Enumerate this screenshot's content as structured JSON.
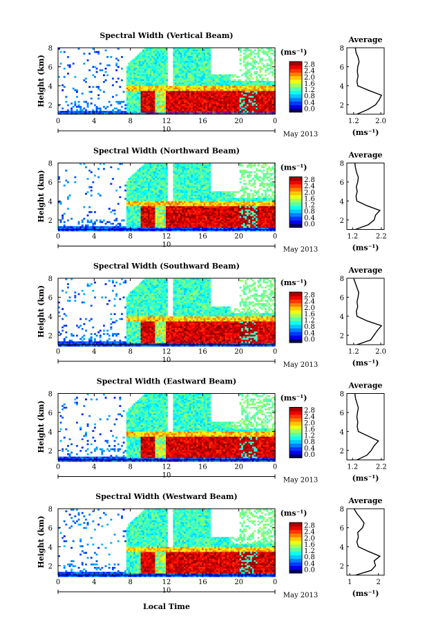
{
  "figure": {
    "xlabel": "Local Time",
    "date_label": "May 2013",
    "colorbar_unit": "(ms⁻¹)",
    "profile_title": "Average",
    "profile_unit": "(ms⁻¹)"
  },
  "chart_data": [
    {
      "type": "heatmap",
      "title": "Spectral Width (Vertical Beam)",
      "ylabel": "Height (km)",
      "xlabel": "Local Time",
      "x_ticks": [
        "0",
        "4",
        "8",
        "12",
        "16",
        "20",
        "0"
      ],
      "day_label": "10",
      "y_ticks": [
        "2",
        "4",
        "6",
        "8"
      ],
      "xlim": [
        0,
        24
      ],
      "ylim": [
        1,
        8
      ],
      "colorbar": {
        "ticks": [
          "0.0",
          "0.4",
          "0.8",
          "1.2",
          "1.6",
          "2.0",
          "2.4",
          "2.8"
        ],
        "range": [
          0,
          2.8
        ]
      },
      "profile": {
        "title": "Average",
        "xlabel": "(ms⁻¹)",
        "x_ticks": [
          "1.2",
          "2.0"
        ],
        "xlim": [
          1.0,
          2.1
        ],
        "y_ticks": [
          "2",
          "4",
          "6",
          "8"
        ],
        "ylim": [
          1,
          8
        ],
        "heights": [
          1.0,
          1.5,
          2.0,
          2.5,
          3.0,
          3.5,
          4.0,
          4.5,
          5.0,
          5.5,
          6.0,
          6.5,
          7.0,
          7.5,
          8.0
        ],
        "values": [
          1.3,
          1.62,
          1.85,
          1.95,
          2.02,
          1.65,
          1.32,
          1.3,
          1.33,
          1.31,
          1.32,
          1.36,
          1.33,
          1.27,
          1.25
        ]
      }
    },
    {
      "type": "heatmap",
      "title": "Spectral Width (Northward Beam)",
      "ylabel": "Height (km)",
      "xlabel": "Local Time",
      "x_ticks": [
        "0",
        "4",
        "8",
        "12",
        "16",
        "20",
        "0"
      ],
      "day_label": "10",
      "y_ticks": [
        "2",
        "4",
        "6",
        "8"
      ],
      "xlim": [
        0,
        24
      ],
      "ylim": [
        1,
        8
      ],
      "colorbar": {
        "ticks": [
          "0.0",
          "0.4",
          "0.8",
          "1.2",
          "1.6",
          "2.0",
          "2.4",
          "2.8"
        ],
        "range": [
          0,
          2.8
        ]
      },
      "profile": {
        "title": "Average",
        "xlabel": "(ms⁻¹)",
        "x_ticks": [
          "1.2",
          "2.2"
        ],
        "xlim": [
          1.0,
          2.3
        ],
        "y_ticks": [
          "2",
          "4",
          "6",
          "8"
        ],
        "ylim": [
          1,
          8
        ],
        "heights": [
          1.0,
          1.5,
          2.0,
          2.5,
          3.0,
          3.5,
          4.0,
          4.5,
          5.0,
          5.5,
          6.0,
          6.5,
          7.0,
          7.5,
          8.0
        ],
        "values": [
          1.3,
          1.75,
          1.95,
          2.0,
          2.15,
          1.7,
          1.35,
          1.32,
          1.36,
          1.33,
          1.38,
          1.4,
          1.34,
          1.3,
          1.28
        ]
      }
    },
    {
      "type": "heatmap",
      "title": "Spectral Width (Southward Beam)",
      "ylabel": "Height (km)",
      "xlabel": "Local Time",
      "x_ticks": [
        "0",
        "4",
        "8",
        "12",
        "16",
        "20",
        "0"
      ],
      "day_label": "10",
      "y_ticks": [
        "2",
        "4",
        "6",
        "8"
      ],
      "xlim": [
        0,
        24
      ],
      "ylim": [
        1,
        8
      ],
      "colorbar": {
        "ticks": [
          "0.0",
          "0.4",
          "0.8",
          "1.2",
          "1.6",
          "2.0",
          "2.4",
          "2.8"
        ],
        "range": [
          0,
          2.8
        ]
      },
      "profile": {
        "title": "Average",
        "xlabel": "(ms⁻¹)",
        "x_ticks": [
          "1.2",
          "2.0"
        ],
        "xlim": [
          1.0,
          2.1
        ],
        "y_ticks": [
          "2",
          "4",
          "6",
          "8"
        ],
        "ylim": [
          1,
          8
        ],
        "heights": [
          1.0,
          1.5,
          2.0,
          2.5,
          3.0,
          3.5,
          4.0,
          4.5,
          5.0,
          5.5,
          6.0,
          6.5,
          7.0,
          7.5,
          8.0
        ],
        "values": [
          1.3,
          1.7,
          1.8,
          1.9,
          2.02,
          1.6,
          1.3,
          1.28,
          1.32,
          1.3,
          1.33,
          1.35,
          1.3,
          1.25,
          1.2
        ]
      }
    },
    {
      "type": "heatmap",
      "title": "Spectral Width (Eastward Beam)",
      "ylabel": "Height (km)",
      "xlabel": "Local Time",
      "x_ticks": [
        "0",
        "4",
        "8",
        "12",
        "16",
        "20",
        "0"
      ],
      "day_label": "10",
      "y_ticks": [
        "2",
        "4",
        "6",
        "8"
      ],
      "xlim": [
        0,
        24
      ],
      "ylim": [
        1,
        8
      ],
      "colorbar": {
        "ticks": [
          "0.0",
          "0.4",
          "0.8",
          "1.2",
          "1.6",
          "2.0",
          "2.4",
          "2.8"
        ],
        "range": [
          0,
          2.8
        ]
      },
      "profile": {
        "title": "Average",
        "xlabel": "(ms⁻¹)",
        "x_ticks": [
          "1.2",
          "2.2"
        ],
        "xlim": [
          1.0,
          2.3
        ],
        "y_ticks": [
          "2",
          "4",
          "6",
          "8"
        ],
        "ylim": [
          1,
          8
        ],
        "heights": [
          1.0,
          1.5,
          2.0,
          2.5,
          3.0,
          3.5,
          4.0,
          4.5,
          5.0,
          5.5,
          6.0,
          6.5,
          7.0,
          7.5,
          8.0
        ],
        "values": [
          1.35,
          1.7,
          1.85,
          1.95,
          2.1,
          1.75,
          1.4,
          1.36,
          1.38,
          1.35,
          1.37,
          1.4,
          1.35,
          1.3,
          1.28
        ]
      }
    },
    {
      "type": "heatmap",
      "title": "Spectral Width (Westward Beam)",
      "ylabel": "Height (km)",
      "xlabel": "Local Time",
      "x_ticks": [
        "0",
        "4",
        "8",
        "12",
        "16",
        "20",
        "0"
      ],
      "day_label": "10",
      "y_ticks": [
        "2",
        "4",
        "6",
        "8"
      ],
      "xlim": [
        0,
        24
      ],
      "ylim": [
        1,
        8
      ],
      "colorbar": {
        "ticks": [
          "0.0",
          "0.4",
          "0.8",
          "1.2",
          "1.6",
          "2.0",
          "2.4",
          "2.8"
        ],
        "range": [
          0,
          2.8
        ]
      },
      "profile": {
        "title": "Average",
        "xlabel": "(ms⁻¹)",
        "x_ticks": [
          "1",
          "2"
        ],
        "xlim": [
          0.9,
          2.2
        ],
        "y_ticks": [
          "2",
          "4",
          "6",
          "8"
        ],
        "ylim": [
          1,
          8
        ],
        "heights": [
          1.0,
          1.5,
          2.0,
          2.5,
          3.0,
          3.5,
          4.0,
          4.5,
          5.0,
          5.5,
          6.0,
          6.5,
          7.0,
          7.5,
          8.0
        ],
        "values": [
          1.2,
          1.75,
          1.9,
          1.85,
          2.05,
          1.65,
          1.3,
          1.25,
          1.3,
          1.28,
          1.45,
          1.5,
          1.38,
          1.25,
          1.15
        ]
      }
    }
  ]
}
